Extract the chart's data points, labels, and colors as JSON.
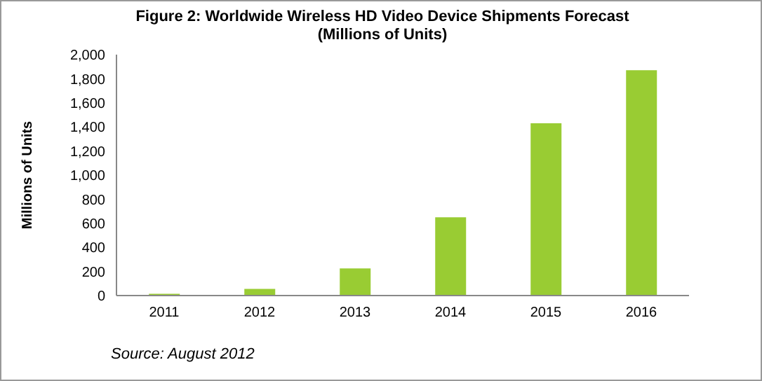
{
  "chart_data": {
    "type": "bar",
    "title": "Figure 2: Worldwide Wireless HD Video Device Shipments Forecast",
    "subtitle": "(Millions of Units)",
    "ylabel": "Millions of Units",
    "categories": [
      "2011",
      "2012",
      "2013",
      "2014",
      "2015",
      "2016"
    ],
    "values": [
      15,
      55,
      225,
      650,
      1430,
      1870
    ],
    "color": "#99cc33",
    "ylim": [
      0,
      2000
    ],
    "yticks": [
      {
        "value": 0,
        "label": "0"
      },
      {
        "value": 200,
        "label": "200"
      },
      {
        "value": 400,
        "label": "400"
      },
      {
        "value": 600,
        "label": "600"
      },
      {
        "value": 800,
        "label": "800"
      },
      {
        "value": 1000,
        "label": "1,000"
      },
      {
        "value": 1200,
        "label": "1,200"
      },
      {
        "value": 1400,
        "label": "1,400"
      },
      {
        "value": 1600,
        "label": "1,600"
      },
      {
        "value": 1800,
        "label": "1,800"
      },
      {
        "value": 2000,
        "label": "2,000"
      }
    ],
    "grid": false,
    "annotations": [
      "Source: August 2012"
    ]
  }
}
